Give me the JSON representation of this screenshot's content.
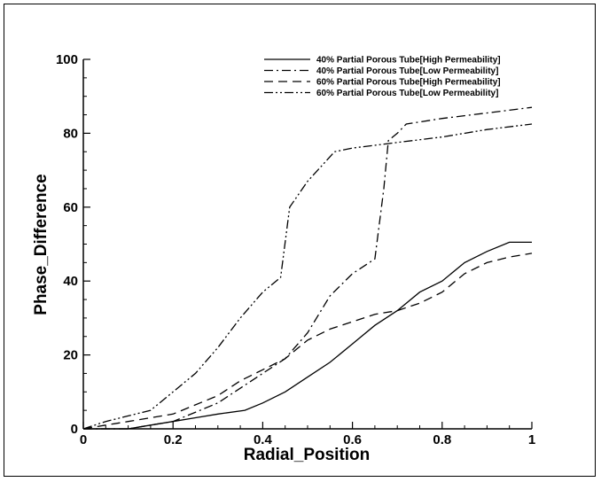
{
  "chart_data": {
    "type": "line",
    "title": "",
    "xlabel": "Radial_Position",
    "ylabel": "Phase_Difference",
    "xlim": [
      0,
      1
    ],
    "ylim": [
      0,
      100
    ],
    "x_ticks": [
      0,
      0.2,
      0.4,
      0.6,
      0.8,
      1
    ],
    "x_tick_labels": [
      "0",
      "0.2",
      "0.4",
      "0.6",
      "0.8",
      "1"
    ],
    "y_ticks": [
      0,
      20,
      40,
      60,
      80,
      100
    ],
    "y_tick_labels": [
      "0",
      "20",
      "40",
      "60",
      "80",
      "100"
    ],
    "grid": false,
    "legend_position": "top-right",
    "series": [
      {
        "name": "40% Partial Porous Tube[High Permeability]",
        "dash": "solid",
        "x": [
          0,
          0.05,
          0.1,
          0.15,
          0.2,
          0.25,
          0.3,
          0.36,
          0.4,
          0.45,
          0.5,
          0.55,
          0.6,
          0.65,
          0.7,
          0.75,
          0.8,
          0.85,
          0.9,
          0.95,
          1.0
        ],
        "y": [
          0,
          0,
          0,
          1,
          2,
          3,
          4,
          5,
          7,
          10,
          14,
          18,
          23,
          28,
          32,
          37,
          40,
          45,
          48,
          50.5,
          50.5
        ]
      },
      {
        "name": "40% Partial Porous Tube[Low Permeability]",
        "dash": "dashdot",
        "x": [
          0,
          0.1,
          0.15,
          0.2,
          0.3,
          0.4,
          0.45,
          0.5,
          0.55,
          0.6,
          0.65,
          0.67,
          0.68,
          0.7,
          0.72,
          0.8,
          0.9,
          1.0
        ],
        "y": [
          0,
          0,
          1,
          2,
          7,
          15,
          19,
          26,
          36,
          42,
          46,
          65,
          78,
          80,
          82.5,
          84,
          85.5,
          87
        ]
      },
      {
        "name": "60% Partial Porous Tube[High Permeability]",
        "dash": "dash",
        "x": [
          0,
          0.05,
          0.1,
          0.2,
          0.3,
          0.35,
          0.4,
          0.45,
          0.5,
          0.55,
          0.6,
          0.65,
          0.7,
          0.75,
          0.8,
          0.85,
          0.9,
          0.95,
          1.0
        ],
        "y": [
          0,
          1,
          2,
          4,
          9,
          13,
          16,
          19,
          24,
          27,
          29,
          31,
          32,
          34,
          37,
          42,
          45,
          46.5,
          47.5
        ]
      },
      {
        "name": "60% Partial Porous Tube[Low Permeability]",
        "dash": "dashdotdot",
        "x": [
          0,
          0.05,
          0.1,
          0.15,
          0.2,
          0.25,
          0.3,
          0.35,
          0.4,
          0.44,
          0.46,
          0.5,
          0.56,
          0.6,
          0.7,
          0.8,
          0.9,
          1.0
        ],
        "y": [
          0,
          2,
          3.5,
          5,
          10,
          15,
          22,
          30,
          37,
          41,
          60,
          67,
          75,
          76,
          77.5,
          79,
          81,
          82.5
        ]
      }
    ]
  }
}
